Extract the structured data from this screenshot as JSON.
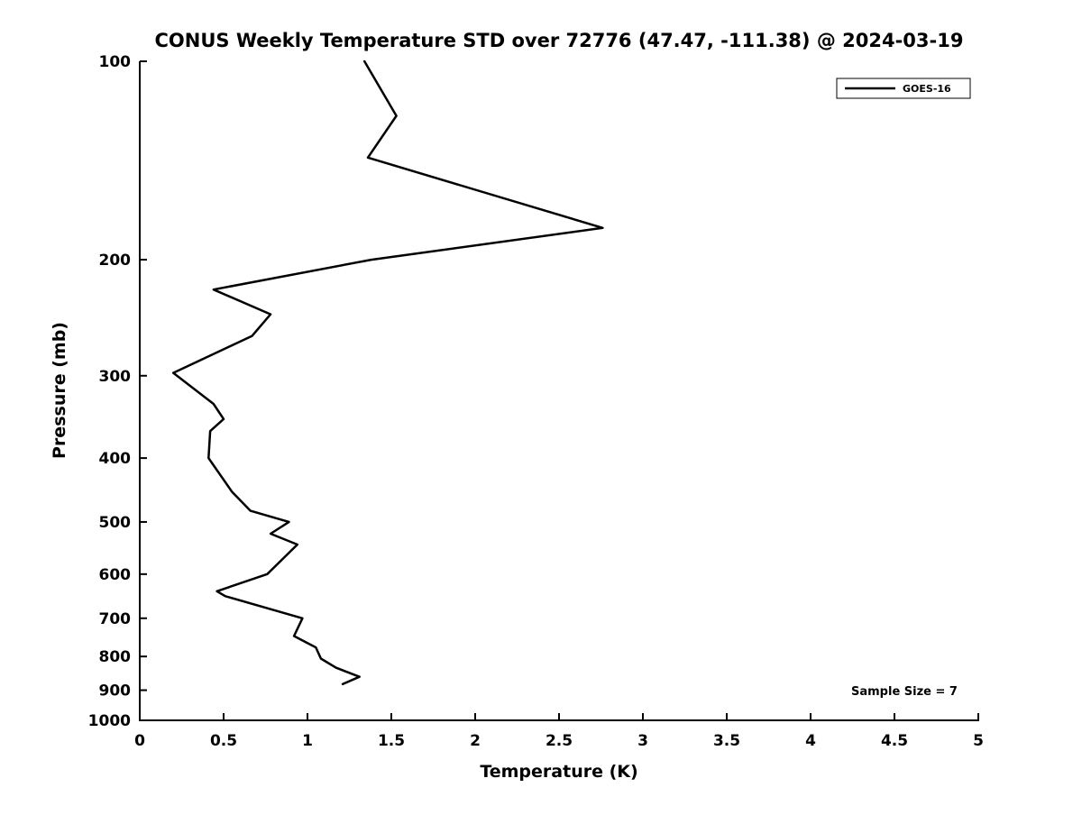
{
  "chart_data": {
    "type": "line",
    "title": "CONUS Weekly Temperature STD over 72776 (47.47, -111.38) @ 2024-03-19",
    "xlabel": "Temperature (K)",
    "ylabel": "Pressure (mb)",
    "xlim": [
      0,
      5
    ],
    "ylim": [
      100,
      1000
    ],
    "y_scale": "log",
    "y_inverted": true,
    "grid": false,
    "x_ticks": [
      "0",
      "0.5",
      "1",
      "1.5",
      "2",
      "2.5",
      "3",
      "3.5",
      "4",
      "4.5",
      "5"
    ],
    "y_ticks": [
      "100",
      "200",
      "300",
      "400",
      "500",
      "600",
      "700",
      "800",
      "900",
      "1000"
    ],
    "legend_position": "top-right",
    "annotation": "Sample Size = 7",
    "line_color": "#000000",
    "axis_color": "#000000",
    "series": [
      {
        "name": "GOES-16",
        "points_format": "[temperature_K, pressure_mb]",
        "points": [
          [
            1.34,
            100
          ],
          [
            1.53,
            121
          ],
          [
            1.36,
            140
          ],
          [
            2.76,
            179
          ],
          [
            1.38,
            200
          ],
          [
            0.44,
            222
          ],
          [
            0.78,
            242
          ],
          [
            0.67,
            261
          ],
          [
            0.2,
            297
          ],
          [
            0.44,
            331
          ],
          [
            0.5,
            349
          ],
          [
            0.42,
            364
          ],
          [
            0.41,
            400
          ],
          [
            0.55,
            450
          ],
          [
            0.66,
            481
          ],
          [
            0.89,
            500
          ],
          [
            0.78,
            521
          ],
          [
            0.94,
            541
          ],
          [
            0.76,
            600
          ],
          [
            0.46,
            637
          ],
          [
            0.51,
            648
          ],
          [
            0.97,
            700
          ],
          [
            0.92,
            745
          ],
          [
            1.05,
            775
          ],
          [
            1.08,
            806
          ],
          [
            1.17,
            832
          ],
          [
            1.31,
            859
          ],
          [
            1.21,
            881
          ]
        ]
      }
    ]
  }
}
